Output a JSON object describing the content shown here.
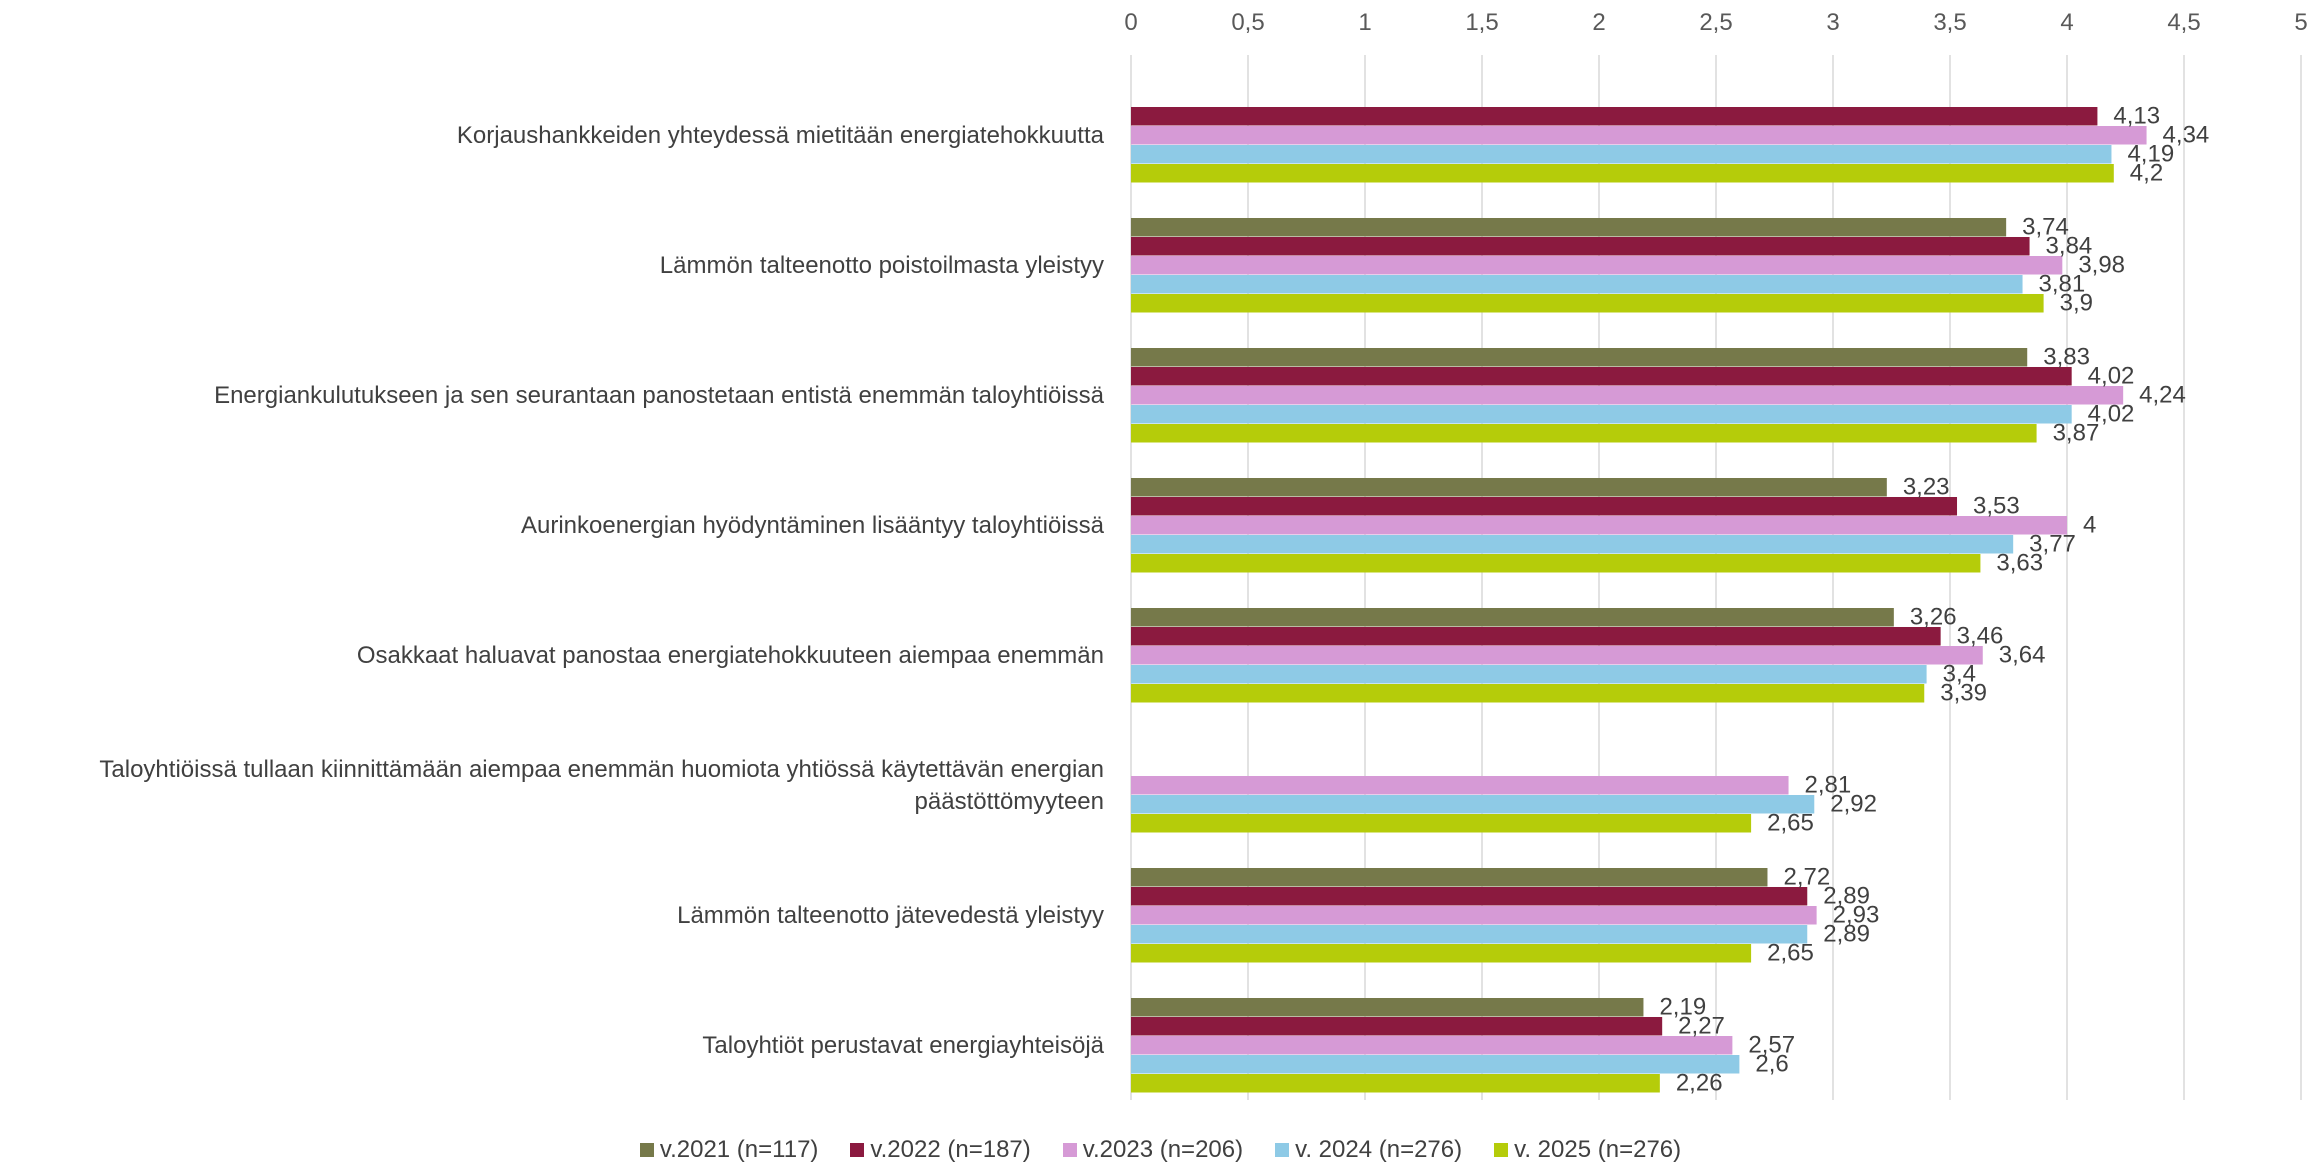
{
  "chart_data": {
    "type": "bar",
    "orientation": "horizontal",
    "xlim": [
      0,
      5
    ],
    "ticks": [
      "0",
      "0,5",
      "1",
      "1,5",
      "2",
      "2,5",
      "3",
      "3,5",
      "4",
      "4,5",
      "5"
    ],
    "tick_values": [
      0,
      0.5,
      1,
      1.5,
      2,
      2.5,
      3,
      3.5,
      4,
      4.5,
      5
    ],
    "grid": true,
    "legend_position": "bottom",
    "categories": [
      "Korjaushankkeiden yhteydessä mietitään energiatehokkuutta",
      "Lämmön talteenotto poistoilmasta yleistyy",
      "Energiankulutukseen ja sen seurantaan panostetaan entistä enemmän taloyhtiöissä",
      "Aurinkoenergian hyödyntäminen lisääntyy taloyhtiöissä",
      "Osakkaat haluavat panostaa energiatehokkuuteen aiempaa enemmän",
      "Taloyhtiöissä tullaan kiinnittämään aiempaa enemmän huomiota yhtiössä käytettävän energian päästöttömyyteen",
      "Lämmön talteenotto jätevedestä yleistyy",
      "Taloyhtiöt perustavat energiayhteisöjä"
    ],
    "series": [
      {
        "name": "v.2021 (n=117)",
        "color": "#76794a",
        "values": [
          null,
          3.74,
          3.83,
          3.23,
          3.26,
          null,
          2.72,
          2.19
        ],
        "labels": [
          "",
          "3,74",
          "3,83",
          "3,23",
          "3,26",
          "",
          "2,72",
          "2,19"
        ]
      },
      {
        "name": "v.2022 (n=187)",
        "color": "#8b1a3f",
        "values": [
          4.13,
          3.84,
          4.02,
          3.53,
          3.46,
          null,
          2.89,
          2.27
        ],
        "labels": [
          "4,13",
          "3,84",
          "4,02",
          "3,53",
          "3,46",
          "",
          "2,89",
          "2,27"
        ]
      },
      {
        "name": "v.2023 (n=206)",
        "color": "#d69ad6",
        "values": [
          4.34,
          3.98,
          4.24,
          4,
          3.64,
          2.81,
          2.93,
          2.57
        ],
        "labels": [
          "4,34",
          "3,98",
          "4,24",
          "4",
          "3,64",
          "2,81",
          "2,93",
          "2,57"
        ]
      },
      {
        "name": "v. 2024 (n=276)",
        "color": "#8ecae6",
        "values": [
          4.19,
          3.81,
          4.02,
          3.77,
          3.4,
          2.92,
          2.89,
          2.6
        ],
        "labels": [
          "4,19",
          "3,81",
          "4,02",
          "3,77",
          "3,4",
          "2,92",
          "2,89",
          "2,6"
        ]
      },
      {
        "name": "v. 2025 (n=276)",
        "color": "#b5cc0a",
        "values": [
          4.2,
          3.9,
          3.87,
          3.63,
          3.39,
          2.65,
          2.65,
          2.26
        ],
        "labels": [
          "4,2",
          "3,9",
          "3,87",
          "3,63",
          "3,39",
          "2,65",
          "2,65",
          "2,26"
        ]
      }
    ]
  }
}
